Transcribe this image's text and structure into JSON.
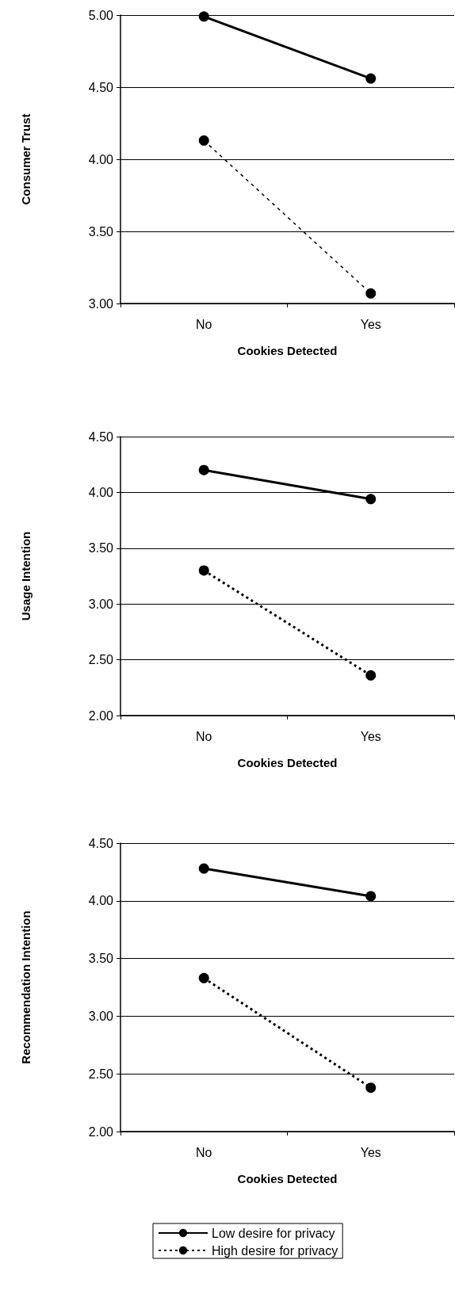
{
  "chart_data": [
    {
      "type": "line",
      "ylabel": "Consumer Trust",
      "xlabel": "Cookies Detected",
      "categories": [
        "No",
        "Yes"
      ],
      "ylim": [
        3,
        5
      ],
      "yticks": [
        {
          "value": 3,
          "label": "3.00"
        },
        {
          "value": 3.5,
          "label": "3.50"
        },
        {
          "value": 4,
          "label": "4.00"
        },
        {
          "value": 4.5,
          "label": "4.50"
        },
        {
          "value": 5,
          "label": "5.00"
        }
      ],
      "grid": "y",
      "marker": "circle",
      "series": [
        {
          "color": "#000000",
          "line_style": "solid",
          "values": [
            4.99,
            4.56
          ]
        },
        {
          "color": "#000000",
          "line_style": "dashed",
          "values": [
            4.13,
            3.07
          ]
        }
      ]
    },
    {
      "type": "line",
      "ylabel": "Usage Intention",
      "xlabel": "Cookies Detected",
      "categories": [
        "No",
        "Yes"
      ],
      "ylim": [
        2,
        4.5
      ],
      "yticks": [
        {
          "value": 2,
          "label": "2.00"
        },
        {
          "value": 2.5,
          "label": "2.50"
        },
        {
          "value": 3,
          "label": "3.00"
        },
        {
          "value": 3.5,
          "label": "3.50"
        },
        {
          "value": 4,
          "label": "4.00"
        },
        {
          "value": 4.5,
          "label": "4.50"
        }
      ],
      "grid": "y",
      "marker": "circle",
      "series": [
        {
          "color": "#000000",
          "line_style": "solid",
          "values": [
            4.2,
            3.94
          ]
        },
        {
          "color": "#000000",
          "line_style": "dotted",
          "values": [
            3.3,
            2.36
          ]
        }
      ]
    },
    {
      "type": "line",
      "ylabel": "Recommendation Intention",
      "xlabel": "Cookies Detected",
      "categories": [
        "No",
        "Yes"
      ],
      "ylim": [
        2,
        4.5
      ],
      "yticks": [
        {
          "value": 2,
          "label": "2.00"
        },
        {
          "value": 2.5,
          "label": "2.50"
        },
        {
          "value": 3,
          "label": "3.00"
        },
        {
          "value": 3.5,
          "label": "3.50"
        },
        {
          "value": 4,
          "label": "4.00"
        },
        {
          "value": 4.5,
          "label": "4.50"
        }
      ],
      "grid": "y",
      "marker": "circle",
      "legend": "bottom",
      "series": [
        {
          "name": "Low desire for privacy",
          "color": "#000000",
          "line_style": "solid",
          "values": [
            4.28,
            4.04
          ]
        },
        {
          "name": "High desire for privacy",
          "color": "#000000",
          "line_style": "dotted",
          "values": [
            3.33,
            2.38
          ]
        }
      ]
    }
  ]
}
